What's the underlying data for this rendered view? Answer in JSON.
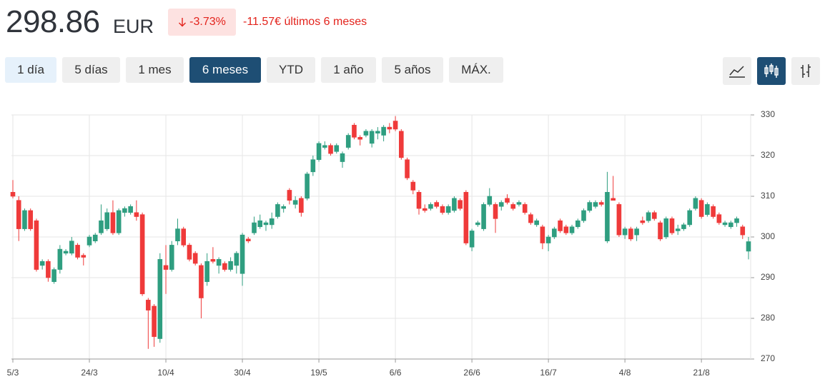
{
  "header": {
    "price": "298.86",
    "currency": "EUR",
    "change_pct": "-3.73%",
    "change_abs": "-11.57€ últimos 6 meses"
  },
  "ranges": [
    "1 día",
    "5 días",
    "1 mes",
    "6 meses",
    "YTD",
    "1 año",
    "5 años",
    "MÁX."
  ],
  "chart_data": {
    "type": "candlestick",
    "categories": [
      "5/3",
      null,
      null,
      null,
      null,
      null,
      null,
      null,
      null,
      null,
      null,
      null,
      null,
      "24/3",
      null,
      null,
      null,
      null,
      null,
      null,
      null,
      null,
      null,
      null,
      null,
      null,
      "10/4",
      null,
      null,
      null,
      null,
      null,
      null,
      null,
      null,
      null,
      null,
      null,
      null,
      "30/4",
      null,
      null,
      null,
      null,
      null,
      null,
      null,
      null,
      null,
      null,
      null,
      null,
      "19/5",
      null,
      null,
      null,
      null,
      null,
      null,
      null,
      null,
      null,
      null,
      null,
      null,
      "6/6",
      null,
      null,
      null,
      null,
      null,
      null,
      null,
      null,
      null,
      null,
      null,
      null,
      "26/6",
      null,
      null,
      null,
      null,
      null,
      null,
      null,
      null,
      null,
      null,
      null,
      null,
      "16/7",
      null,
      null,
      null,
      null,
      null,
      null,
      null,
      null,
      null,
      null,
      null,
      null,
      "4/8",
      null,
      null,
      null,
      null,
      null,
      null,
      null,
      null,
      null,
      null,
      null,
      null,
      "21/8",
      null,
      null,
      null,
      null,
      null,
      null,
      null,
      null
    ],
    "open": [
      311,
      309,
      302,
      306.5,
      304,
      293,
      294,
      289,
      292,
      296,
      296,
      298,
      295.5,
      298,
      299,
      301,
      302,
      306,
      301,
      306,
      306,
      306,
      305.5,
      284.5,
      283,
      275,
      293,
      292,
      299,
      302,
      298,
      296,
      293,
      289,
      294.5,
      293,
      293.5,
      292,
      293,
      291,
      299.5,
      301,
      302.5,
      303,
      303,
      305,
      307,
      311.5,
      308,
      309.5,
      309.5,
      316,
      319,
      322,
      322.5,
      321,
      318.5,
      322,
      327.5,
      324.5,
      325,
      323,
      325.5,
      325,
      327,
      328.5,
      326,
      319,
      313.5,
      311,
      307,
      307,
      308.5,
      307.5,
      306,
      306.5,
      309,
      311,
      297.5,
      303,
      302,
      308,
      308,
      307.5,
      309.5,
      308,
      308,
      308,
      305.5,
      303,
      302.5,
      298.5,
      300,
      304,
      302.5,
      301,
      302.5,
      304,
      306.5,
      307.5,
      308.5,
      299,
      309.5,
      308,
      300.5,
      302,
      300.5,
      304,
      304,
      306,
      303.5,
      300,
      304.5,
      301.5,
      302,
      303,
      307,
      309,
      305.5,
      307.5,
      305.5,
      303,
      302.5,
      303.5,
      302.5,
      296.5
    ],
    "high": [
      314,
      310,
      307,
      307,
      304.5,
      294.5,
      294.5,
      292.5,
      298,
      297,
      300,
      298.5,
      296,
      300.5,
      301,
      308,
      307,
      309,
      307,
      307.5,
      308,
      309,
      306,
      285,
      283.5,
      296,
      298,
      299,
      304.5,
      302.5,
      298.5,
      296.5,
      293.5,
      296,
      297.5,
      295,
      294,
      295,
      296.5,
      301,
      300,
      305,
      305.5,
      304,
      306,
      308.5,
      308,
      312,
      310,
      310,
      316,
      320,
      323.5,
      323.5,
      323,
      323,
      321,
      325.5,
      328,
      325,
      326.5,
      326.5,
      327,
      327.5,
      328,
      329.7,
      326.5,
      319.5,
      314,
      311.5,
      308,
      308.5,
      309,
      308,
      308,
      310,
      309.5,
      311.5,
      302,
      304,
      308.5,
      312,
      308.5,
      309,
      310.5,
      308.5,
      309,
      308.5,
      306,
      304.5,
      303,
      300.5,
      302.5,
      304.5,
      303,
      303,
      304.5,
      307,
      309,
      309,
      309,
      316,
      315,
      308.5,
      302.5,
      302.5,
      302.5,
      305,
      306.5,
      306.5,
      304,
      305,
      305,
      303,
      303.5,
      307,
      310,
      309.5,
      308.5,
      308,
      306,
      304,
      304,
      305,
      303,
      300
    ],
    "low": [
      309.5,
      299,
      301.5,
      301.5,
      291.5,
      292,
      289,
      288.5,
      291,
      295.5,
      295.5,
      294.5,
      293,
      297.5,
      298.5,
      300.5,
      301.5,
      300.5,
      300.5,
      305,
      305.5,
      304,
      285.5,
      272.5,
      273,
      274,
      286,
      291.5,
      298,
      297.5,
      294,
      293,
      280,
      288,
      293.5,
      291,
      291.5,
      291.5,
      291,
      288,
      298.5,
      300.5,
      302,
      301.5,
      302,
      304.5,
      306,
      308,
      307,
      305,
      309,
      315,
      318.5,
      321.5,
      320,
      320.5,
      317,
      321.5,
      324,
      322.5,
      324.5,
      322,
      324,
      323.5,
      325.5,
      326,
      319,
      314,
      310.5,
      305.5,
      306,
      306.5,
      307,
      305.5,
      305.5,
      306,
      306.5,
      298,
      296.5,
      302.5,
      301.5,
      307.5,
      301,
      306.5,
      308,
      306.5,
      307.5,
      305.5,
      303,
      302.5,
      297,
      296.5,
      299.5,
      301,
      300.5,
      300.5,
      302,
      303.5,
      306,
      307,
      307.5,
      298.5,
      309,
      300,
      299.5,
      299,
      299,
      303,
      303.5,
      304,
      299,
      299.5,
      300.5,
      300.5,
      301.5,
      302.5,
      306.5,
      304.5,
      305,
      304.5,
      303,
      302.5,
      302,
      302.5,
      299.5,
      294.5
    ],
    "close": [
      310,
      302,
      306.5,
      302,
      292,
      294,
      290,
      292,
      297,
      296.5,
      299,
      295,
      295,
      300,
      300.5,
      304,
      306,
      301,
      306.5,
      307,
      307.5,
      305,
      286,
      282,
      275.5,
      294.5,
      292,
      298,
      302,
      298,
      294.5,
      293.5,
      285,
      294,
      294,
      294.5,
      292,
      294,
      296,
      300.5,
      299,
      303.5,
      304,
      303.5,
      304.5,
      308,
      307.5,
      309,
      309,
      306,
      315.5,
      319,
      323,
      322.5,
      320.5,
      322.5,
      320.5,
      325,
      324.5,
      324,
      326,
      326,
      326,
      327,
      326.5,
      326.5,
      319.5,
      314.5,
      311.5,
      307,
      306.5,
      308,
      307.5,
      306,
      307.5,
      309.5,
      307,
      298.5,
      301.5,
      303.5,
      308,
      310,
      304.5,
      308.5,
      308.5,
      307,
      308.5,
      306,
      303.5,
      304,
      298.5,
      300,
      302,
      301.5,
      301,
      302.5,
      304,
      306.5,
      308.5,
      308.5,
      308,
      311,
      309,
      300.5,
      302,
      299.5,
      302,
      303.5,
      306,
      304.5,
      299.5,
      304.5,
      301,
      302,
      303,
      306.5,
      309.5,
      305,
      308,
      305,
      303.5,
      303.5,
      303.5,
      304.5,
      300.5,
      298.86
    ],
    "up_color": "#2f9e80",
    "down_color": "#ef3a3a",
    "ylim": [
      270,
      330
    ],
    "yticks": [
      270,
      280,
      290,
      300,
      310,
      320,
      330
    ],
    "grid": true
  }
}
